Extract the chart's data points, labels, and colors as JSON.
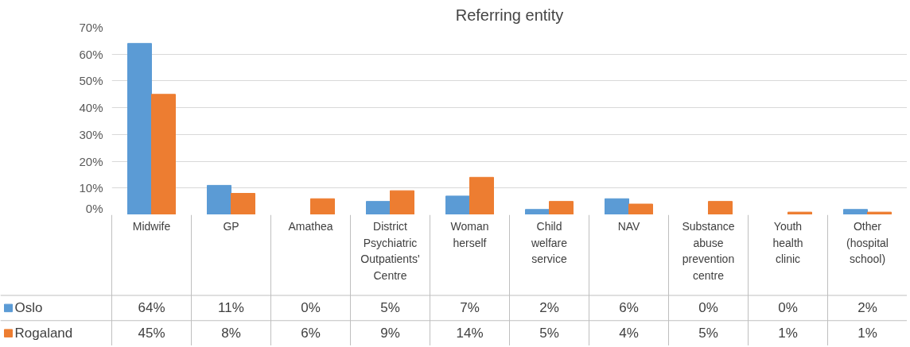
{
  "chart_data": {
    "type": "bar",
    "title": "Referring entity",
    "categories": [
      "Midwife",
      "GP",
      "Amathea",
      "District Psychiatric Outpatients' Centre",
      "Woman herself",
      "Child welfare service",
      "NAV",
      "Substance abuse prevention centre",
      "Youth health clinic",
      "Other (hospital school)"
    ],
    "series": [
      {
        "name": "Oslo",
        "color": "#5b9bd5",
        "values": [
          64,
          11,
          0,
          5,
          7,
          2,
          6,
          0,
          0,
          2
        ],
        "value_labels": [
          "64%",
          "11%",
          "0%",
          "5%",
          "7%",
          "2%",
          "6%",
          "0%",
          "0%",
          "2%"
        ]
      },
      {
        "name": "Rogaland",
        "color": "#ed7d31",
        "values": [
          45,
          8,
          6,
          9,
          14,
          5,
          4,
          5,
          1,
          1
        ],
        "value_labels": [
          "45%",
          "8%",
          "6%",
          "9%",
          "14%",
          "5%",
          "4%",
          "5%",
          "1%",
          "1%"
        ]
      }
    ],
    "ylim": [
      0,
      70
    ],
    "yticks": [
      {
        "value": 0,
        "label": "0%"
      },
      {
        "value": 10,
        "label": "10%"
      },
      {
        "value": 20,
        "label": "20%"
      },
      {
        "value": 30,
        "label": "30%"
      },
      {
        "value": 40,
        "label": "40%"
      },
      {
        "value": 50,
        "label": "50%"
      },
      {
        "value": 60,
        "label": "60%"
      },
      {
        "value": 70,
        "label": "70%"
      }
    ],
    "grid": "y",
    "legend": "bottom left"
  }
}
